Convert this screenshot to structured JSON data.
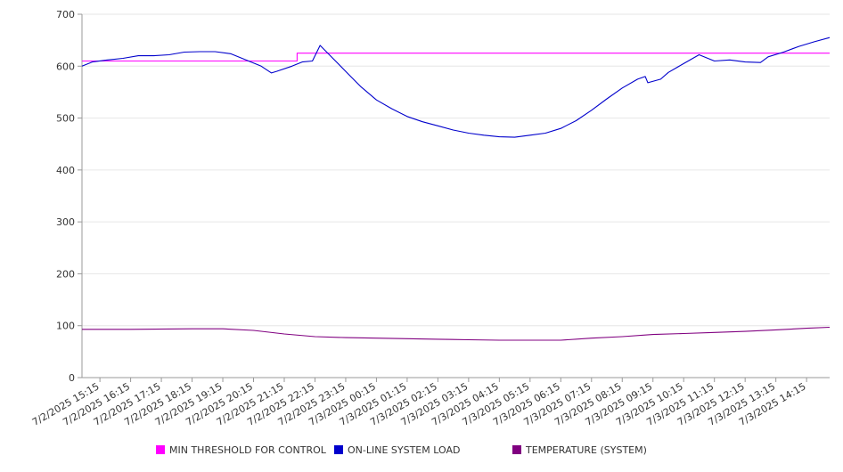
{
  "chart_data": {
    "type": "line",
    "ylim": [
      0,
      700
    ],
    "y_ticks": [
      0,
      100,
      200,
      300,
      400,
      500,
      600,
      700
    ],
    "x_tick_labels": [
      "7/2/2025 15:15",
      "7/2/2025 16:15",
      "7/2/2025 17:15",
      "7/2/2025 18:15",
      "7/2/2025 19:15",
      "7/2/2025 20:15",
      "7/2/2025 21:15",
      "7/2/2025 22:15",
      "7/2/2025 23:15",
      "7/3/2025 00:15",
      "7/3/2025 01:15",
      "7/3/2025 02:15",
      "7/3/2025 03:15",
      "7/3/2025 04:15",
      "7/3/2025 05:15",
      "7/3/2025 06:15",
      "7/3/2025 07:15",
      "7/3/2025 08:15",
      "7/3/2025 09:15",
      "7/3/2025 10:15",
      "7/3/2025 11:15",
      "7/3/2025 12:15",
      "7/3/2025 13:15",
      "7/3/2025 14:15"
    ],
    "x_range": [
      "7/2/2025 14:40",
      "7/3/2025 15:00"
    ],
    "grid": true,
    "legend_position": "bottom",
    "series": [
      {
        "name": "MIN THRESHOLD FOR CONTROL",
        "color": "#ff00ff",
        "points": [
          [
            "7/2/2025 14:40",
            610
          ],
          [
            "7/2/2025 21:40",
            610
          ],
          [
            "7/2/2025 21:40",
            625
          ],
          [
            "7/3/2025 15:00",
            625
          ]
        ]
      },
      {
        "name": "ON-LINE SYSTEM LOAD",
        "color": "#0000cc",
        "points": [
          [
            "7/2/2025 14:40",
            600
          ],
          [
            "7/2/2025 15:00",
            608
          ],
          [
            "7/2/2025 15:30",
            612
          ],
          [
            "7/2/2025 16:00",
            615
          ],
          [
            "7/2/2025 16:30",
            620
          ],
          [
            "7/2/2025 17:00",
            620
          ],
          [
            "7/2/2025 17:30",
            622
          ],
          [
            "7/2/2025 18:00",
            627
          ],
          [
            "7/2/2025 18:30",
            628
          ],
          [
            "7/2/2025 19:00",
            628
          ],
          [
            "7/2/2025 19:30",
            624
          ],
          [
            "7/2/2025 20:00",
            612
          ],
          [
            "7/2/2025 20:30",
            600
          ],
          [
            "7/2/2025 20:50",
            587
          ],
          [
            "7/2/2025 21:00",
            590
          ],
          [
            "7/2/2025 21:30",
            600
          ],
          [
            "7/2/2025 21:50",
            608
          ],
          [
            "7/2/2025 22:10",
            610
          ],
          [
            "7/2/2025 22:25",
            640
          ],
          [
            "7/2/2025 22:45",
            620
          ],
          [
            "7/2/2025 23:15",
            590
          ],
          [
            "7/2/2025 23:45",
            560
          ],
          [
            "7/3/2025 00:15",
            535
          ],
          [
            "7/3/2025 00:45",
            518
          ],
          [
            "7/3/2025 01:15",
            503
          ],
          [
            "7/3/2025 01:45",
            493
          ],
          [
            "7/3/2025 02:15",
            485
          ],
          [
            "7/3/2025 02:45",
            477
          ],
          [
            "7/3/2025 03:15",
            471
          ],
          [
            "7/3/2025 03:45",
            467
          ],
          [
            "7/3/2025 04:15",
            464
          ],
          [
            "7/3/2025 04:45",
            463
          ],
          [
            "7/3/2025 05:15",
            467
          ],
          [
            "7/3/2025 05:45",
            471
          ],
          [
            "7/3/2025 06:15",
            480
          ],
          [
            "7/3/2025 06:45",
            495
          ],
          [
            "7/3/2025 07:15",
            515
          ],
          [
            "7/3/2025 07:45",
            537
          ],
          [
            "7/3/2025 08:15",
            558
          ],
          [
            "7/3/2025 08:45",
            575
          ],
          [
            "7/3/2025 09:00",
            580
          ],
          [
            "7/3/2025 09:05",
            568
          ],
          [
            "7/3/2025 09:30",
            575
          ],
          [
            "7/3/2025 09:45",
            588
          ],
          [
            "7/3/2025 10:15",
            605
          ],
          [
            "7/3/2025 10:45",
            622
          ],
          [
            "7/3/2025 11:15",
            610
          ],
          [
            "7/3/2025 11:45",
            612
          ],
          [
            "7/3/2025 12:15",
            608
          ],
          [
            "7/3/2025 12:45",
            607
          ],
          [
            "7/3/2025 13:00",
            618
          ],
          [
            "7/3/2025 13:30",
            627
          ],
          [
            "7/3/2025 14:00",
            638
          ],
          [
            "7/3/2025 14:30",
            647
          ],
          [
            "7/3/2025 15:00",
            655
          ]
        ]
      },
      {
        "name": "TEMPERATURE (SYSTEM)",
        "color": "#800080",
        "points": [
          [
            "7/2/2025 14:40",
            93
          ],
          [
            "7/2/2025 16:15",
            93
          ],
          [
            "7/2/2025 18:15",
            94
          ],
          [
            "7/2/2025 19:15",
            94
          ],
          [
            "7/2/2025 20:15",
            91
          ],
          [
            "7/2/2025 21:15",
            84
          ],
          [
            "7/2/2025 22:15",
            79
          ],
          [
            "7/2/2025 23:15",
            77
          ],
          [
            "7/3/2025 00:15",
            76
          ],
          [
            "7/3/2025 01:15",
            75
          ],
          [
            "7/3/2025 02:15",
            74
          ],
          [
            "7/3/2025 03:15",
            73
          ],
          [
            "7/3/2025 04:15",
            72
          ],
          [
            "7/3/2025 05:15",
            72
          ],
          [
            "7/3/2025 06:15",
            72
          ],
          [
            "7/3/2025 07:15",
            76
          ],
          [
            "7/3/2025 08:15",
            79
          ],
          [
            "7/3/2025 09:15",
            83
          ],
          [
            "7/3/2025 10:15",
            85
          ],
          [
            "7/3/2025 11:15",
            87
          ],
          [
            "7/3/2025 12:15",
            89
          ],
          [
            "7/3/2025 13:15",
            92
          ],
          [
            "7/3/2025 14:15",
            95
          ],
          [
            "7/3/2025 15:00",
            97
          ]
        ]
      }
    ]
  }
}
